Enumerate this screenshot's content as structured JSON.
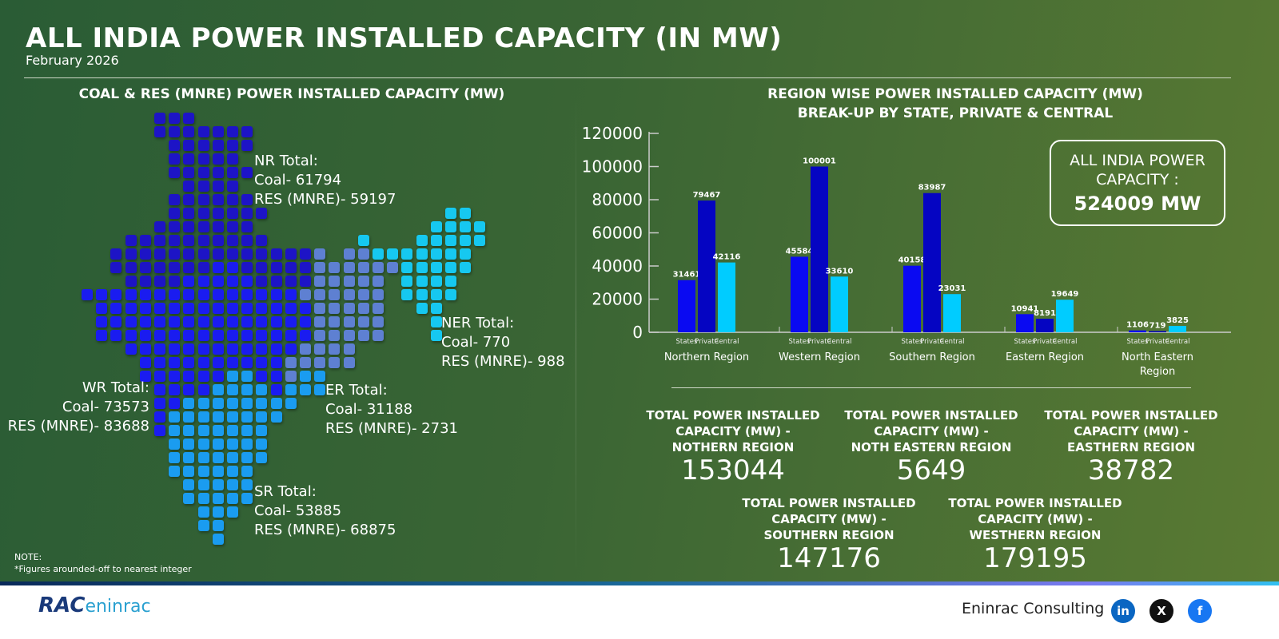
{
  "header": {
    "title": "ALL INDIA POWER INSTALLED CAPACITY (IN MW)",
    "subtitle": "February 2026"
  },
  "map_section": {
    "title": "COAL & RES (MNRE) POWER INSTALLED CAPACITY (MW)",
    "region_colors": {
      "NR": "#1d14c6",
      "WR": "#1a1cf0",
      "SR": "#1a9cf0",
      "ER": "#5e80d2",
      "NER": "#16c8f0"
    },
    "labels": {
      "nr": [
        "NR Total:",
        "Coal- 61794",
        "RES (MNRE)- 59197"
      ],
      "ner": [
        "NER Total:",
        "Coal- 770",
        "RES (MNRE)- 988"
      ],
      "wr": [
        "WR Total:",
        "Coal- 73573",
        "RES (MNRE)- 83688"
      ],
      "er": [
        "ER Total:",
        "Coal- 31188",
        "RES (MNRE)- 2731"
      ],
      "sr": [
        "SR Total:",
        "Coal- 53885",
        "RES (MNRE)- 68875"
      ]
    },
    "note": [
      "NOTE:",
      "*Figures arounded-off to nearest integer"
    ]
  },
  "chart_section": {
    "title_line1": "REGION WISE POWER INSTALLED CAPACITY (MW)",
    "title_line2": "BREAK-UP BY STATE, PRIVATE & CENTRAL"
  },
  "all_india": {
    "label_line1": "ALL INDIA POWER",
    "label_line2": "CAPACITY :",
    "value": "524009 MW"
  },
  "chart_data": {
    "type": "bar",
    "categories": [
      "Northern Region",
      "Western Region",
      "Southern Region",
      "Eastern Region",
      "North Eastern Region"
    ],
    "sub_categories": [
      "States",
      "Private",
      "Central"
    ],
    "series": [
      {
        "name": "States",
        "color": "#0a0af2",
        "values": [
          31461,
          45584,
          40158,
          10941,
          1106
        ]
      },
      {
        "name": "Private",
        "color": "#0505c2",
        "values": [
          79467,
          100001,
          83987,
          8191,
          719
        ]
      },
      {
        "name": "Central",
        "color": "#00ccff",
        "values": [
          42116,
          33610,
          23031,
          19649,
          3825
        ]
      }
    ],
    "yticks": [
      0,
      20000,
      40000,
      60000,
      80000,
      100000,
      120000
    ],
    "ylim": [
      0,
      120000
    ],
    "grid": false
  },
  "totals": [
    {
      "label": "TOTAL POWER INSTALLED CAPACITY (MW) - NOTHERN REGION",
      "value": "153044"
    },
    {
      "label": "TOTAL POWER INSTALLED CAPACITY (MW) - NOTH EASTERN REGION",
      "value": "5649"
    },
    {
      "label": "TOTAL POWER INSTALLED CAPACITY (MW) - EASTHERN REGION",
      "value": "38782"
    },
    {
      "label": "TOTAL POWER INSTALLED CAPACITY (MW) - SOUTHERN REGION",
      "value": "147176"
    },
    {
      "label": "TOTAL POWER INSTALLED CAPACITY (MW) - WESTHERN REGION",
      "value": "179195"
    }
  ],
  "footer": {
    "logo": "RAC",
    "logo_text": "eninrac",
    "brand": "Eninrac Consulting",
    "social": [
      {
        "icon": "linkedin-icon",
        "glyph": "in",
        "color": "#0a66c2"
      },
      {
        "icon": "x-icon",
        "glyph": "X",
        "color": "#111111"
      },
      {
        "icon": "facebook-icon",
        "glyph": "f",
        "color": "#1877f2"
      }
    ]
  }
}
